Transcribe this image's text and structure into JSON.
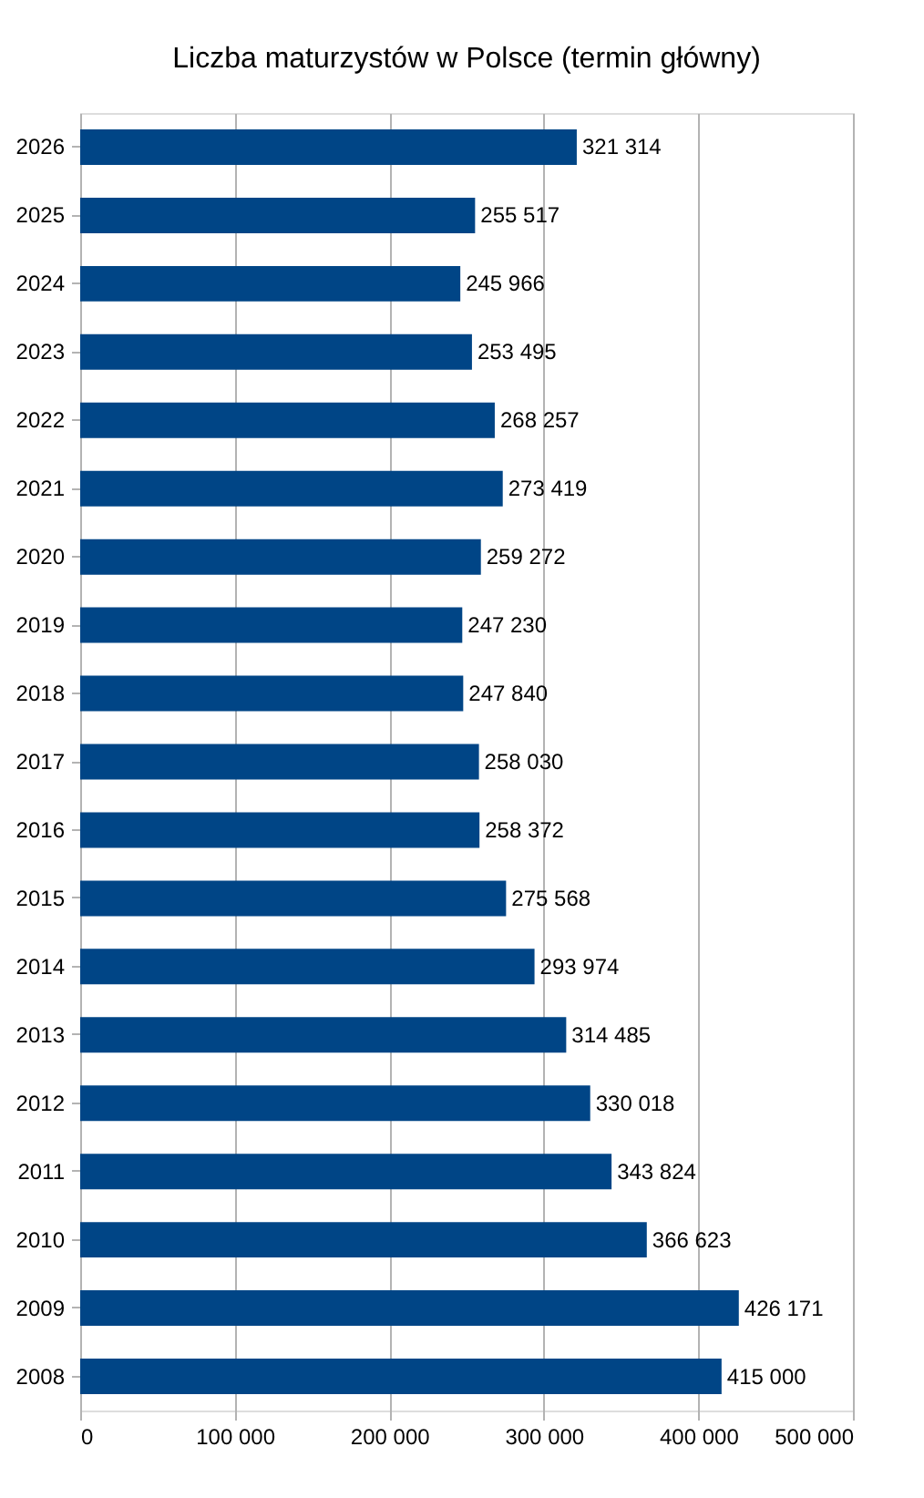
{
  "chart_data": {
    "type": "bar",
    "orientation": "horizontal",
    "title": "Liczba maturzystów w Polsce (termin główny)",
    "categories": [
      "2026",
      "2025",
      "2024",
      "2023",
      "2022",
      "2021",
      "2020",
      "2019",
      "2018",
      "2017",
      "2016",
      "2015",
      "2014",
      "2013",
      "2012",
      "2011",
      "2010",
      "2009",
      "2008"
    ],
    "values": [
      321314,
      255517,
      245966,
      253495,
      268257,
      273419,
      259272,
      247230,
      247840,
      258030,
      258372,
      275568,
      293974,
      314485,
      330018,
      343824,
      366623,
      426171,
      415000
    ],
    "value_labels": [
      "321 314",
      "255 517",
      "245 966",
      "253 495",
      "268 257",
      "273 419",
      "259 272",
      "247 230",
      "247 840",
      "258 030",
      "258 372",
      "275 568",
      "293 974",
      "314 485",
      "330 018",
      "343 824",
      "366 623",
      "426 171",
      "415 000"
    ],
    "color": "#004586",
    "xlim": [
      0,
      500000
    ],
    "xticks": [
      0,
      {
        "value": 100000,
        "label": "100 000"
      },
      {
        "value": 200000,
        "label": "200 000"
      },
      {
        "value": 300000,
        "label": "300 000"
      },
      {
        "value": 400000,
        "label": "400 000"
      },
      {
        "value": 500000,
        "label": "500 000"
      }
    ],
    "grid": "x"
  }
}
